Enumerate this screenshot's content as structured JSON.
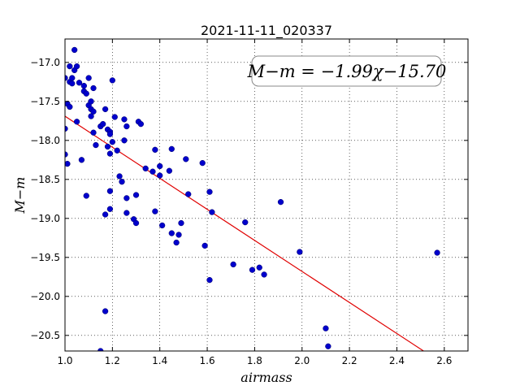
{
  "chart_data": {
    "type": "scatter",
    "title": "2021-11-11_020337",
    "xlabel": "airmass",
    "ylabel": "M−m",
    "xlim": [
      1.0,
      2.7
    ],
    "ylim": [
      -20.7,
      -16.7
    ],
    "y_inverted": true,
    "grid": true,
    "xticks": [
      "1.0",
      "1.2",
      "1.4",
      "1.6",
      "1.8",
      "2.0",
      "2.2",
      "2.4",
      "2.6"
    ],
    "xtick_values": [
      1.0,
      1.2,
      1.4,
      1.6,
      1.8,
      2.0,
      2.2,
      2.4,
      2.6
    ],
    "yticks": [
      "−17.0",
      "−17.5",
      "−18.0",
      "−18.5",
      "−19.0",
      "−19.5",
      "−20.0",
      "−20.5"
    ],
    "ytick_values": [
      -17.0,
      -17.5,
      -18.0,
      -18.5,
      -19.0,
      -19.5,
      -20.0,
      -20.5
    ],
    "annotation": "M−m = −1.99χ−15.70",
    "fit": {
      "slope": -1.99,
      "intercept": -15.7,
      "color": "#e00000"
    },
    "point_color": "#0000cc",
    "points": [
      [
        1.0,
        -17.2
      ],
      [
        1.0,
        -17.85
      ],
      [
        1.0,
        -18.18
      ],
      [
        1.01,
        -18.3
      ],
      [
        1.01,
        -17.53
      ],
      [
        1.02,
        -17.05
      ],
      [
        1.02,
        -17.25
      ],
      [
        1.02,
        -17.57
      ],
      [
        1.03,
        -17.27
      ],
      [
        1.03,
        -17.2
      ],
      [
        1.04,
        -17.1
      ],
      [
        1.04,
        -16.84
      ],
      [
        1.05,
        -17.05
      ],
      [
        1.05,
        -17.76
      ],
      [
        1.06,
        -17.26
      ],
      [
        1.07,
        -18.25
      ],
      [
        1.08,
        -17.3
      ],
      [
        1.08,
        -17.37
      ],
      [
        1.09,
        -17.4
      ],
      [
        1.09,
        -18.71
      ],
      [
        1.1,
        -17.55
      ],
      [
        1.1,
        -17.2
      ],
      [
        1.11,
        -17.5
      ],
      [
        1.11,
        -17.6
      ],
      [
        1.11,
        -17.69
      ],
      [
        1.12,
        -17.33
      ],
      [
        1.12,
        -17.9
      ],
      [
        1.12,
        -17.63
      ],
      [
        1.13,
        -18.06
      ],
      [
        1.15,
        -17.82
      ],
      [
        1.15,
        -20.7
      ],
      [
        1.16,
        -17.79
      ],
      [
        1.17,
        -17.6
      ],
      [
        1.17,
        -18.95
      ],
      [
        1.17,
        -20.19
      ],
      [
        1.18,
        -17.86
      ],
      [
        1.18,
        -18.08
      ],
      [
        1.19,
        -17.89
      ],
      [
        1.19,
        -17.92
      ],
      [
        1.19,
        -18.17
      ],
      [
        1.19,
        -18.65
      ],
      [
        1.19,
        -18.88
      ],
      [
        1.2,
        -17.23
      ],
      [
        1.2,
        -18.02
      ],
      [
        1.21,
        -17.7
      ],
      [
        1.22,
        -18.13
      ],
      [
        1.23,
        -18.46
      ],
      [
        1.24,
        -18.53
      ],
      [
        1.25,
        -17.73
      ],
      [
        1.25,
        -18.0
      ],
      [
        1.26,
        -17.82
      ],
      [
        1.26,
        -18.74
      ],
      [
        1.26,
        -18.93
      ],
      [
        1.29,
        -19.01
      ],
      [
        1.3,
        -19.06
      ],
      [
        1.3,
        -18.7
      ],
      [
        1.31,
        -17.76
      ],
      [
        1.32,
        -17.79
      ],
      [
        1.34,
        -18.36
      ],
      [
        1.37,
        -18.4
      ],
      [
        1.38,
        -18.12
      ],
      [
        1.38,
        -18.91
      ],
      [
        1.4,
        -18.45
      ],
      [
        1.4,
        -18.33
      ],
      [
        1.41,
        -19.09
      ],
      [
        1.44,
        -18.39
      ],
      [
        1.45,
        -18.11
      ],
      [
        1.45,
        -19.19
      ],
      [
        1.47,
        -19.31
      ],
      [
        1.48,
        -19.21
      ],
      [
        1.49,
        -19.06
      ],
      [
        1.51,
        -18.24
      ],
      [
        1.52,
        -18.69
      ],
      [
        1.58,
        -18.29
      ],
      [
        1.59,
        -19.35
      ],
      [
        1.61,
        -18.66
      ],
      [
        1.61,
        -19.79
      ],
      [
        1.62,
        -18.92
      ],
      [
        1.71,
        -19.59
      ],
      [
        1.76,
        -19.05
      ],
      [
        1.79,
        -19.66
      ],
      [
        1.82,
        -19.63
      ],
      [
        1.84,
        -19.72
      ],
      [
        1.91,
        -18.79
      ],
      [
        1.99,
        -19.43
      ],
      [
        2.1,
        -20.41
      ],
      [
        2.11,
        -20.64
      ],
      [
        2.57,
        -19.44
      ]
    ]
  }
}
